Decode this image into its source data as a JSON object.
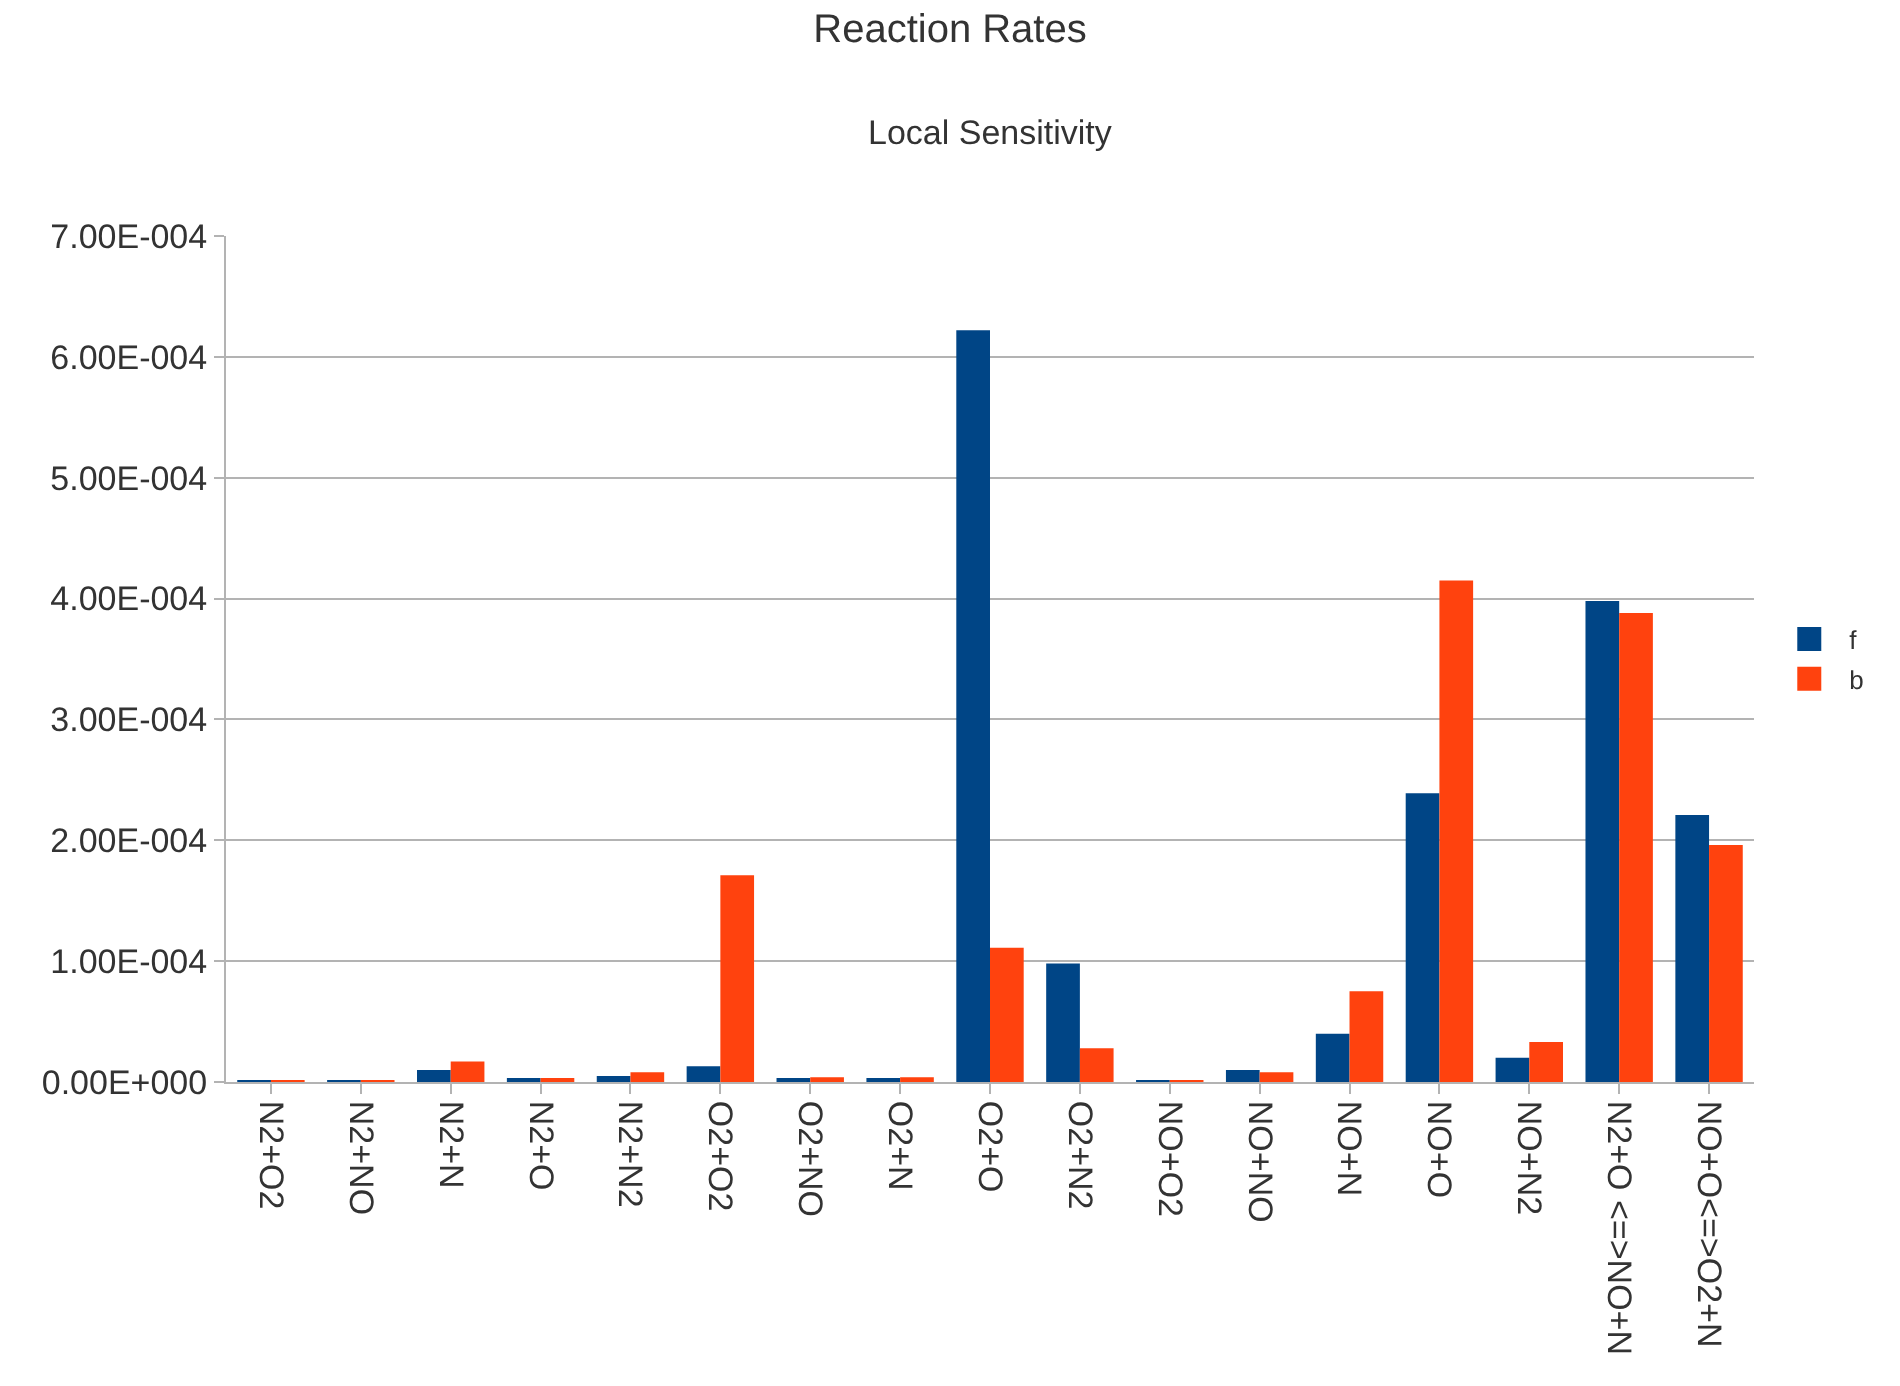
{
  "chart_data": {
    "type": "bar",
    "title": "Reaction Rates",
    "subtitle": "Local Sensitivity",
    "categories": [
      "N2+O2",
      "N2+NO",
      "N2+N",
      "N2+O",
      "N2+N2",
      "O2+O2",
      "O2+NO",
      "O2+N",
      "O2+O",
      "O2+N2",
      "NO+O2",
      "NO+NO",
      "NO+N",
      "NO+O",
      "NO+N2",
      "N2+O <=>NO+N",
      "NO+O<=>O2+N"
    ],
    "series": [
      {
        "name": "f",
        "color": "#004586",
        "values": [
          1e-06,
          1e-06,
          1e-05,
          2e-06,
          5e-06,
          1.3e-05,
          2e-06,
          2e-06,
          0.000622,
          9.8e-05,
          1e-06,
          1e-05,
          4e-05,
          0.000239,
          2e-05,
          0.000398,
          0.000221
        ]
      },
      {
        "name": "b",
        "color": "#ff420e",
        "values": [
          1e-06,
          1e-06,
          1.7e-05,
          2e-06,
          8e-06,
          0.000171,
          4e-06,
          4e-06,
          0.000111,
          2.8e-05,
          1e-06,
          8e-06,
          7.5e-05,
          0.000415,
          3.3e-05,
          0.000388,
          0.000196
        ]
      }
    ],
    "ylim": [
      0,
      0.0007
    ],
    "yticks": [
      {
        "value": 0,
        "label": "0.00E+000"
      },
      {
        "value": 0.0001,
        "label": "1.00E-004"
      },
      {
        "value": 0.0002,
        "label": "2.00E-004"
      },
      {
        "value": 0.0003,
        "label": "3.00E-004"
      },
      {
        "value": 0.0004,
        "label": "4.00E-004"
      },
      {
        "value": 0.0005,
        "label": "5.00E-004"
      },
      {
        "value": 0.0006,
        "label": "6.00E-004"
      },
      {
        "value": 0.0007,
        "label": "7.00E-004"
      }
    ],
    "grid": "y",
    "legend": "right"
  }
}
